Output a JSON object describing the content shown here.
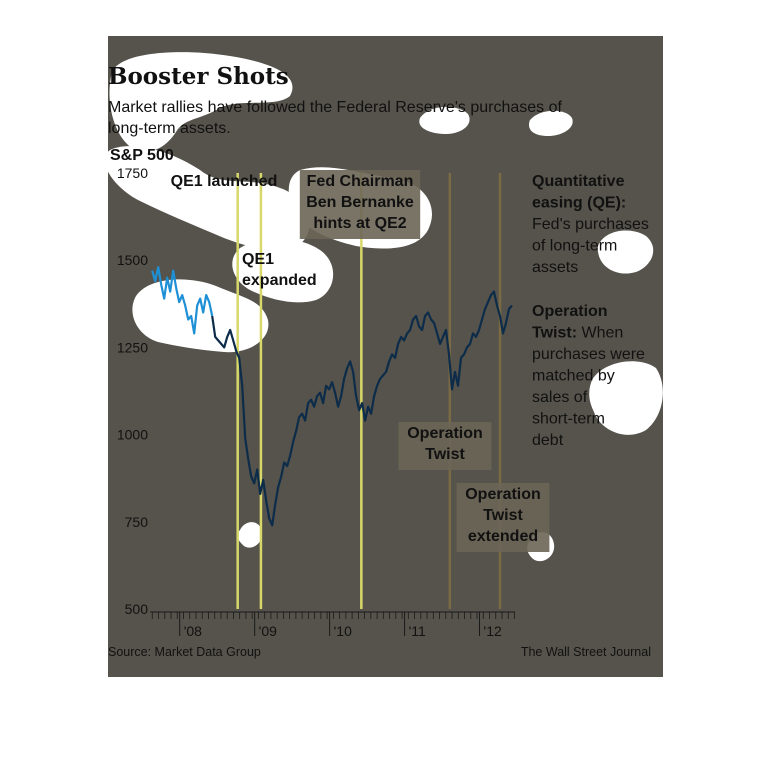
{
  "colors": {
    "panel": "#55534b",
    "line_light": "#1e90d6",
    "line_dark": "#0d2c4a",
    "event_yellow": "#d8d86a",
    "event_brown": "#7a6a45",
    "annotation_box": "#6b6557",
    "blob": "#ffffff"
  },
  "chart_data": {
    "type": "line",
    "title": "Booster Shots",
    "subtitle_lines": [
      "Market rallies have followed the Federal Reserve's purchases of",
      "long-term assets."
    ],
    "ylabel": "S&P 500",
    "ylim": [
      500,
      1750
    ],
    "y_ticks": [
      {
        "value": 1750,
        "label": "1750"
      },
      {
        "value": 1500,
        "label": "1500"
      },
      {
        "value": 1250,
        "label": "1250"
      },
      {
        "value": 1000,
        "label": "1000"
      },
      {
        "value": 750,
        "label": "750"
      },
      {
        "value": 500,
        "label": "500"
      }
    ],
    "xlim": [
      2007.55,
      2012.42
    ],
    "x_ticks": [
      {
        "value": 2008,
        "label": "'08"
      },
      {
        "value": 2009,
        "label": "'09"
      },
      {
        "value": 2010,
        "label": "'10"
      },
      {
        "value": 2011,
        "label": "'11"
      },
      {
        "value": 2012,
        "label": "'12"
      }
    ],
    "series": [
      {
        "x": [
          2007.58,
          2007.62,
          2007.66,
          2007.7,
          2007.74,
          2007.78,
          2007.82,
          2007.86,
          2007.9,
          2007.94,
          2007.98,
          2008.02,
          2008.06,
          2008.1,
          2008.14,
          2008.18,
          2008.22,
          2008.26,
          2008.3,
          2008.34,
          2008.38,
          2008.42,
          2008.46,
          2008.5,
          2008.54,
          2008.58,
          2008.62,
          2008.66,
          2008.7,
          2008.74,
          2008.78,
          2008.82,
          2008.86,
          2008.9,
          2008.94,
          2008.98,
          2009.02,
          2009.06,
          2009.1,
          2009.14,
          2009.18,
          2009.22,
          2009.26,
          2009.3,
          2009.34,
          2009.38,
          2009.42,
          2009.46,
          2009.5,
          2009.54,
          2009.58,
          2009.62,
          2009.66,
          2009.7,
          2009.74,
          2009.78,
          2009.82,
          2009.86,
          2009.9,
          2009.94,
          2009.98,
          2010.02,
          2010.06,
          2010.1,
          2010.14,
          2010.18,
          2010.22,
          2010.26,
          2010.3,
          2010.34,
          2010.38,
          2010.42,
          2010.46,
          2010.5,
          2010.54,
          2010.58,
          2010.62,
          2010.66,
          2010.7,
          2010.74,
          2010.78,
          2010.82,
          2010.86,
          2010.9,
          2010.94,
          2010.98,
          2011.02,
          2011.06,
          2011.1,
          2011.14,
          2011.18,
          2011.22,
          2011.26,
          2011.3,
          2011.34,
          2011.38,
          2011.42,
          2011.46,
          2011.5,
          2011.54,
          2011.58,
          2011.62,
          2011.66,
          2011.7,
          2011.74,
          2011.78,
          2011.82,
          2011.86,
          2011.9,
          2011.94,
          2011.98,
          2012.02,
          2012.06,
          2012.1,
          2012.14,
          2012.18,
          2012.22,
          2012.26,
          2012.3,
          2012.34,
          2012.38
        ],
        "y": [
          1470,
          1440,
          1480,
          1430,
          1390,
          1450,
          1410,
          1470,
          1420,
          1380,
          1400,
          1370,
          1330,
          1340,
          1290,
          1370,
          1390,
          1350,
          1400,
          1380,
          1340,
          1280,
          1270,
          1260,
          1250,
          1280,
          1300,
          1270,
          1240,
          1220,
          1140,
          990,
          930,
          880,
          860,
          900,
          830,
          870,
          810,
          760,
          740,
          800,
          850,
          880,
          920,
          910,
          940,
          980,
          1010,
          1050,
          1060,
          1040,
          1090,
          1100,
          1080,
          1110,
          1120,
          1090,
          1140,
          1130,
          1150,
          1120,
          1080,
          1110,
          1160,
          1190,
          1210,
          1180,
          1110,
          1070,
          1090,
          1040,
          1080,
          1060,
          1110,
          1140,
          1160,
          1170,
          1180,
          1210,
          1230,
          1220,
          1260,
          1280,
          1270,
          1290,
          1300,
          1330,
          1340,
          1310,
          1300,
          1340,
          1350,
          1330,
          1320,
          1290,
          1260,
          1280,
          1300,
          1230,
          1130,
          1180,
          1140,
          1220,
          1230,
          1250,
          1260,
          1290,
          1280,
          1300,
          1330,
          1360,
          1380,
          1400,
          1410,
          1370,
          1340,
          1290,
          1320,
          1360,
          1370
        ]
      }
    ],
    "events": [
      {
        "label_lines": [
          "QE1 launched"
        ],
        "x": 2008.72,
        "kind": "qe"
      },
      {
        "label_lines": [
          "QE1",
          "expanded"
        ],
        "x": 2009.03,
        "kind": "qe"
      },
      {
        "label_lines": [
          "Fed Chairman",
          "Ben Bernanke",
          "hints at QE2"
        ],
        "x": 2010.37,
        "kind": "qe"
      },
      {
        "label_lines": [
          "Operation",
          "Twist"
        ],
        "x": 2011.55,
        "kind": "twist"
      },
      {
        "label_lines": [
          "Operation",
          "Twist",
          "extended"
        ],
        "x": 2012.22,
        "kind": "twist"
      }
    ],
    "legend": [
      {
        "bold": "Quantitative",
        "lines": [
          {
            "text": "Quantitative",
            "bold": true
          },
          {
            "text": "easing (QE):",
            "bold": true
          },
          {
            "text": "Fed's purchases",
            "bold": false
          },
          {
            "text": "of long-term",
            "bold": false
          },
          {
            "text": "assets",
            "bold": false
          }
        ]
      },
      {
        "lines": [
          {
            "text": "Operation",
            "bold": true
          },
          {
            "text": "Twist: When",
            "bold": "partial"
          },
          {
            "text": "purchases were",
            "bold": false
          },
          {
            "text": "matched by",
            "bold": false
          },
          {
            "text": "sales of",
            "bold": false
          },
          {
            "text": "short-term",
            "bold": false
          },
          {
            "text": "debt",
            "bold": false
          }
        ]
      }
    ],
    "source": "Source: Market Data Group",
    "credit": "The Wall Street Journal",
    "grid": false,
    "legend_placement": "right"
  }
}
